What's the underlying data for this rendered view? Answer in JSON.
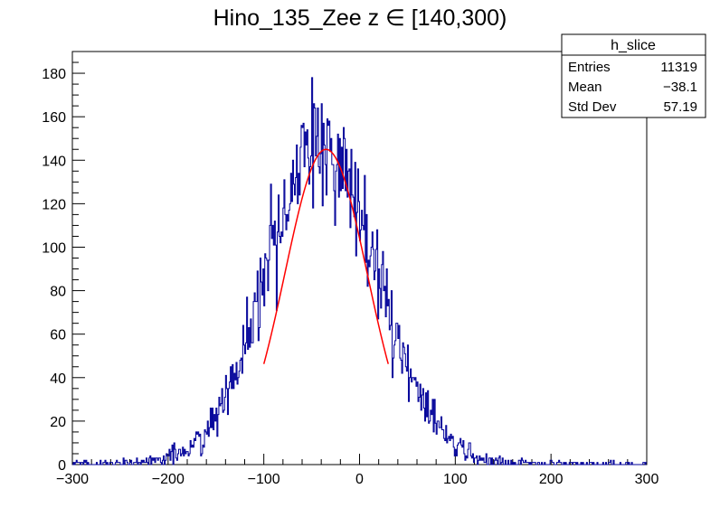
{
  "chart_data": {
    "type": "bar",
    "subtype": "histogram",
    "title": "Hino_135_Zee z  ∈ [140,300)",
    "xlabel": "",
    "ylabel": "",
    "xlim": [
      -300,
      300
    ],
    "ylim": [
      0,
      190
    ],
    "xticks": [
      -300,
      -200,
      -100,
      0,
      100,
      200,
      300
    ],
    "yticks": [
      0,
      20,
      40,
      60,
      80,
      100,
      120,
      140,
      160,
      180
    ],
    "grid": false,
    "histogram": {
      "color": "#000099",
      "bin_width": 1,
      "x_min": -300,
      "x_max": 300,
      "gaussian_envelope": {
        "peak": 145,
        "mean": -38.1,
        "sigma": 57.19
      },
      "noise_seed": 7
    },
    "fit": {
      "color": "#ff0000",
      "function": "gaus",
      "amplitude": 145,
      "mean": -35,
      "sigma": 43,
      "x_range": [
        -100,
        30
      ]
    },
    "stats_box": {
      "name": "h_slice",
      "rows": [
        {
          "label": "Entries",
          "value": "11319"
        },
        {
          "label": "Mean",
          "value": "−38.1"
        },
        {
          "label": "Std Dev",
          "value": "57.19"
        }
      ]
    }
  }
}
